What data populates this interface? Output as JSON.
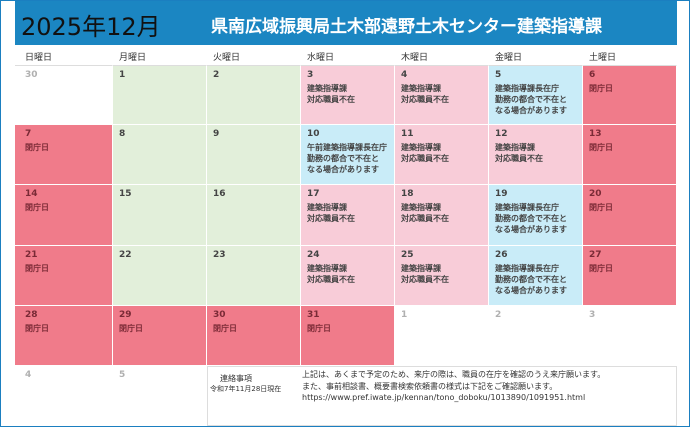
{
  "header": {
    "month": "2025年12月",
    "office": "県南広域振興局土木部遠野土木センター建築指導課"
  },
  "weekdays": [
    "日曜日",
    "月曜日",
    "火曜日",
    "水曜日",
    "木曜日",
    "金曜日",
    "土曜日"
  ],
  "weeks": [
    {
      "days": [
        {
          "day": "30",
          "color": "#ffffff",
          "text_color": "#b0b0b0",
          "lines": []
        },
        {
          "day": "1",
          "color": "#e2efda",
          "text_color": "#444444",
          "lines": []
        },
        {
          "day": "2",
          "color": "#e2efda",
          "text_color": "#444444",
          "lines": []
        },
        {
          "day": "3",
          "color": "#f8ccd8",
          "text_color": "#444444",
          "lines": [
            "建築指導課",
            "対応職員不在"
          ]
        },
        {
          "day": "4",
          "color": "#f8ccd8",
          "text_color": "#444444",
          "lines": [
            "建築指導課",
            "対応職員不在"
          ]
        },
        {
          "day": "5",
          "color": "#c9ecf8",
          "text_color": "#444444",
          "lines": [
            "建築指導課長在庁",
            "勤務の都合で不在と",
            "なる場合があります"
          ]
        },
        {
          "day": "6",
          "color": "#f07b8a",
          "text_color": "#7a2a36",
          "lines": [
            "閉庁日"
          ]
        }
      ]
    },
    {
      "days": [
        {
          "day": "7",
          "color": "#f07b8a",
          "text_color": "#7a2a36",
          "lines": [
            "閉庁日"
          ]
        },
        {
          "day": "8",
          "color": "#e2efda",
          "text_color": "#444444",
          "lines": []
        },
        {
          "day": "9",
          "color": "#e2efda",
          "text_color": "#444444",
          "lines": []
        },
        {
          "day": "10",
          "color": "#c9ecf8",
          "text_color": "#444444",
          "lines": [
            "午前建築指導課長在庁",
            "勤務の都合で不在と",
            "なる場合があります"
          ]
        },
        {
          "day": "11",
          "color": "#f8ccd8",
          "text_color": "#444444",
          "lines": [
            "建築指導課",
            "対応職員不在"
          ]
        },
        {
          "day": "12",
          "color": "#f8ccd8",
          "text_color": "#444444",
          "lines": [
            "建築指導課",
            "対応職員不在"
          ]
        },
        {
          "day": "13",
          "color": "#f07b8a",
          "text_color": "#7a2a36",
          "lines": [
            "閉庁日"
          ]
        }
      ]
    },
    {
      "days": [
        {
          "day": "14",
          "color": "#f07b8a",
          "text_color": "#7a2a36",
          "lines": [
            "閉庁日"
          ]
        },
        {
          "day": "15",
          "color": "#e2efda",
          "text_color": "#444444",
          "lines": []
        },
        {
          "day": "16",
          "color": "#e2efda",
          "text_color": "#444444",
          "lines": []
        },
        {
          "day": "17",
          "color": "#f8ccd8",
          "text_color": "#444444",
          "lines": [
            "建築指導課",
            "対応職員不在"
          ]
        },
        {
          "day": "18",
          "color": "#f8ccd8",
          "text_color": "#444444",
          "lines": [
            "建築指導課",
            "対応職員不在"
          ]
        },
        {
          "day": "19",
          "color": "#c9ecf8",
          "text_color": "#444444",
          "lines": [
            "建築指導課長在庁",
            "勤務の都合で不在と",
            "なる場合があります"
          ]
        },
        {
          "day": "20",
          "color": "#f07b8a",
          "text_color": "#7a2a36",
          "lines": [
            "閉庁日"
          ]
        }
      ]
    },
    {
      "days": [
        {
          "day": "21",
          "color": "#f07b8a",
          "text_color": "#7a2a36",
          "lines": [
            "閉庁日"
          ]
        },
        {
          "day": "22",
          "color": "#e2efda",
          "text_color": "#444444",
          "lines": []
        },
        {
          "day": "23",
          "color": "#e2efda",
          "text_color": "#444444",
          "lines": []
        },
        {
          "day": "24",
          "color": "#f8ccd8",
          "text_color": "#444444",
          "lines": [
            "建築指導課",
            "対応職員不在"
          ]
        },
        {
          "day": "25",
          "color": "#f8ccd8",
          "text_color": "#444444",
          "lines": [
            "建築指導課",
            "対応職員不在"
          ]
        },
        {
          "day": "26",
          "color": "#c9ecf8",
          "text_color": "#444444",
          "lines": [
            "建築指導課長在庁",
            "勤務の都合で不在と",
            "なる場合があります"
          ]
        },
        {
          "day": "27",
          "color": "#f07b8a",
          "text_color": "#7a2a36",
          "lines": [
            "閉庁日"
          ]
        }
      ]
    },
    {
      "days": [
        {
          "day": "28",
          "color": "#f07b8a",
          "text_color": "#7a2a36",
          "lines": [
            "閉庁日"
          ]
        },
        {
          "day": "29",
          "color": "#f07b8a",
          "text_color": "#7a2a36",
          "lines": [
            "閉庁日"
          ]
        },
        {
          "day": "30",
          "color": "#f07b8a",
          "text_color": "#7a2a36",
          "lines": [
            "閉庁日"
          ]
        },
        {
          "day": "31",
          "color": "#f07b8a",
          "text_color": "#7a2a36",
          "lines": [
            "閉庁日"
          ]
        },
        {
          "day": "1",
          "color": "#ffffff",
          "text_color": "#b0b0b0",
          "lines": []
        },
        {
          "day": "2",
          "color": "#ffffff",
          "text_color": "#b0b0b0",
          "lines": []
        },
        {
          "day": "3",
          "color": "#ffffff",
          "text_color": "#b0b0b0",
          "lines": []
        }
      ]
    },
    {
      "days": [
        {
          "day": "4",
          "color": "#ffffff",
          "text_color": "#b0b0b0",
          "lines": []
        },
        {
          "day": "5",
          "color": "#ffffff",
          "text_color": "#b0b0b0",
          "lines": []
        }
      ]
    }
  ],
  "notes": {
    "label": "連絡事項",
    "date": "令和7年11月28日現在",
    "lines": [
      "上記は、あくまで予定のため、来庁の際は、職員の在庁を確認のうえ来庁願います。",
      "また、事前相談書、概要書検索依頼書の様式は下記をご確認願います。",
      "https://www.pref.iwate.jp/kennan/tono_doboku/1013890/1091951.html"
    ]
  }
}
